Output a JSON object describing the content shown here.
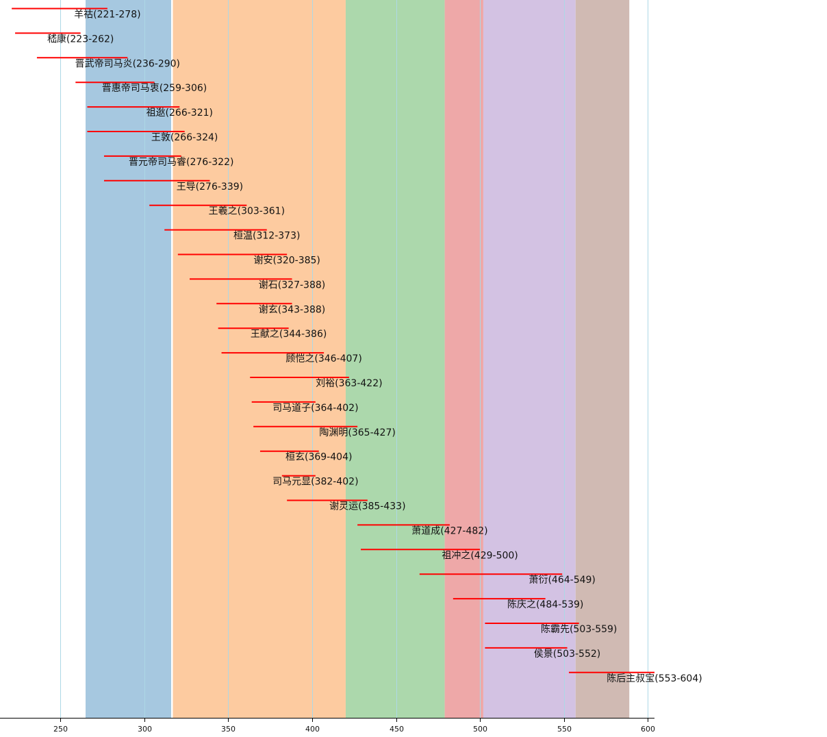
{
  "chart_data": {
    "type": "timeline",
    "xlim": [
      214,
      604
    ],
    "x_ticks": [
      250,
      300,
      350,
      400,
      450,
      500,
      550,
      600
    ],
    "grid": true,
    "bar_color": "#ff0000",
    "periods": [
      {
        "start": 265,
        "end": 316,
        "color": "#a6c8e0"
      },
      {
        "start": 317,
        "end": 420,
        "color": "#fdcba0"
      },
      {
        "start": 420,
        "end": 479,
        "color": "#acd8ac"
      },
      {
        "start": 479,
        "end": 502,
        "color": "#eea8a8"
      },
      {
        "start": 502,
        "end": 557,
        "color": "#d3c2e3"
      },
      {
        "start": 557,
        "end": 589,
        "color": "#d0bab3"
      }
    ],
    "people": [
      {
        "label": "羊祜(221-278)",
        "start": 221,
        "end": 278
      },
      {
        "label": "嵇康(223-262)",
        "start": 223,
        "end": 262
      },
      {
        "label": "晋武帝司马炎(236-290)",
        "start": 236,
        "end": 290
      },
      {
        "label": "晋惠帝司马衷(259-306)",
        "start": 259,
        "end": 306
      },
      {
        "label": "祖逖(266-321)",
        "start": 266,
        "end": 321
      },
      {
        "label": "王敦(266-324)",
        "start": 266,
        "end": 324
      },
      {
        "label": "晋元帝司马睿(276-322)",
        "start": 276,
        "end": 322
      },
      {
        "label": "王导(276-339)",
        "start": 276,
        "end": 339
      },
      {
        "label": "王羲之(303-361)",
        "start": 303,
        "end": 361
      },
      {
        "label": "桓温(312-373)",
        "start": 312,
        "end": 373
      },
      {
        "label": "谢安(320-385)",
        "start": 320,
        "end": 385
      },
      {
        "label": "谢石(327-388)",
        "start": 327,
        "end": 388
      },
      {
        "label": "谢玄(343-388)",
        "start": 343,
        "end": 388
      },
      {
        "label": "王献之(344-386)",
        "start": 344,
        "end": 386
      },
      {
        "label": "顾恺之(346-407)",
        "start": 346,
        "end": 407
      },
      {
        "label": "刘裕(363-422)",
        "start": 363,
        "end": 422
      },
      {
        "label": "司马道子(364-402)",
        "start": 364,
        "end": 402
      },
      {
        "label": "陶渊明(365-427)",
        "start": 365,
        "end": 427
      },
      {
        "label": "桓玄(369-404)",
        "start": 369,
        "end": 404
      },
      {
        "label": "司马元显(382-402)",
        "start": 382,
        "end": 402
      },
      {
        "label": "谢灵运(385-433)",
        "start": 385,
        "end": 433
      },
      {
        "label": "萧道成(427-482)",
        "start": 427,
        "end": 482
      },
      {
        "label": "祖冲之(429-500)",
        "start": 429,
        "end": 500
      },
      {
        "label": "萧衍(464-549)",
        "start": 464,
        "end": 549
      },
      {
        "label": "陈庆之(484-539)",
        "start": 484,
        "end": 539
      },
      {
        "label": "陈霸先(503-559)",
        "start": 503,
        "end": 559
      },
      {
        "label": "侯景(503-552)",
        "start": 503,
        "end": 552
      },
      {
        "label": "陈后主叔宝(553-604)",
        "start": 553,
        "end": 604
      }
    ]
  }
}
